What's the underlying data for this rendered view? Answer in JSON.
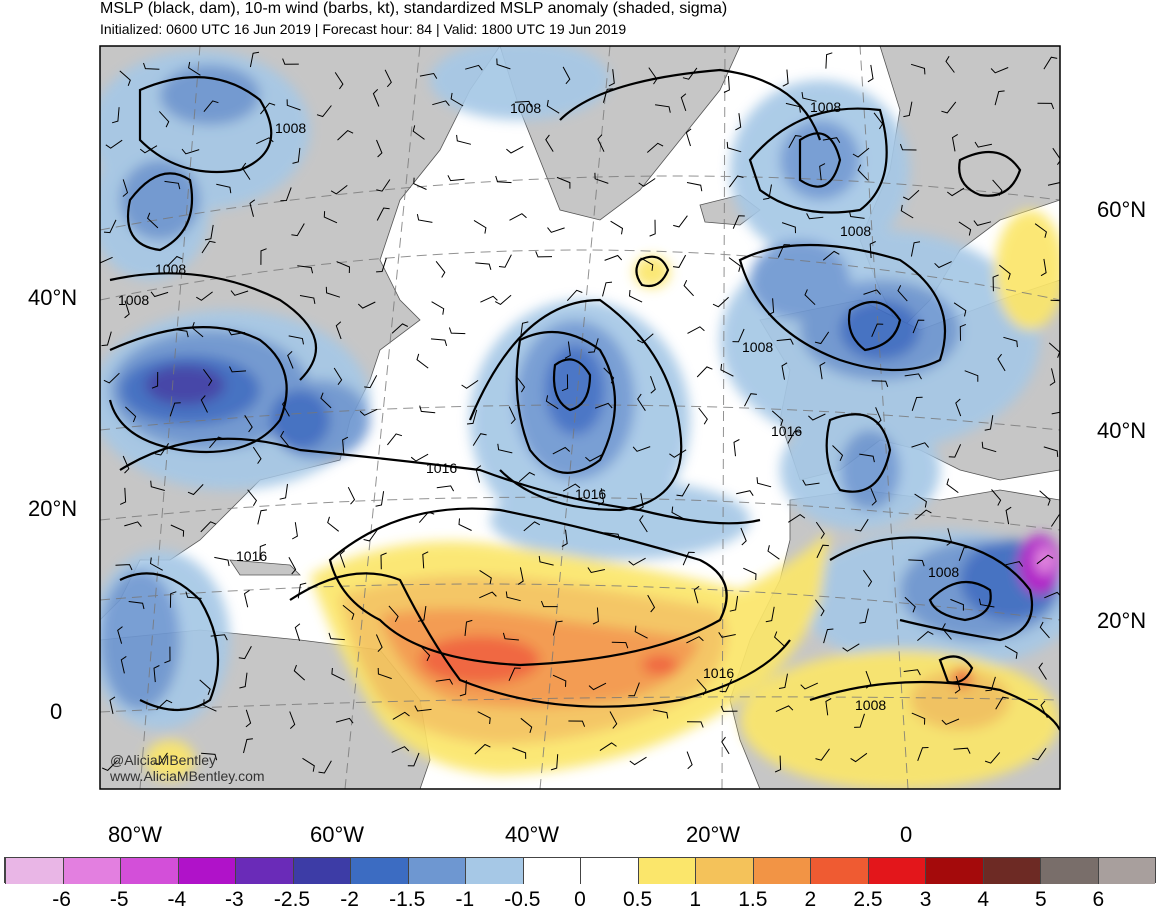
{
  "title": "MSLP (black, dam), 10-m wind (barbs, kt), standardized MSLP anomaly (shaded, sigma)",
  "subtitle": "Initialized: 0600 UTC 16 Jun 2019 | Forecast hour: 84 | Valid: 1800 UTC 19 Jun 2019",
  "credit_handle": "@AliciaMBentley",
  "credit_site": "www.AliciaMBentley.com",
  "lat_labels_left": [
    {
      "text": "40°N"
    },
    {
      "text": "20°N"
    },
    {
      "text": "0"
    }
  ],
  "lat_labels_right": [
    {
      "text": "60°N"
    },
    {
      "text": "40°N"
    },
    {
      "text": "20°N"
    }
  ],
  "lon_labels": [
    {
      "text": "80°W"
    },
    {
      "text": "60°W"
    },
    {
      "text": "40°W"
    },
    {
      "text": "20°W"
    },
    {
      "text": "0"
    }
  ],
  "contour_labels": [
    "1008",
    "1008",
    "1008",
    "1008",
    "1008",
    "1008",
    "1008",
    "1008",
    "1016",
    "1016",
    "1016",
    "1016",
    "1016"
  ],
  "colorbar": {
    "colors": [
      "#e9b6e6",
      "#e37fe0",
      "#d34fd9",
      "#b012c9",
      "#6a2bb8",
      "#3d3ca6",
      "#3c6cc2",
      "#6e97d1",
      "#a6c8e6",
      "#ffffff",
      "#ffffff",
      "#fbe66b",
      "#f4c25a",
      "#f29445",
      "#ef5b32",
      "#e3161b",
      "#a40a0b",
      "#6d2a24",
      "#796e6a",
      "#a89f9d"
    ],
    "labels": [
      "-6",
      "-5",
      "-4",
      "-3",
      "-2.5",
      "-2",
      "-1.5",
      "-1",
      "-0.5",
      "0",
      "0.5",
      "1",
      "1.5",
      "2",
      "2.5",
      "3",
      "4",
      "5",
      "6"
    ]
  }
}
